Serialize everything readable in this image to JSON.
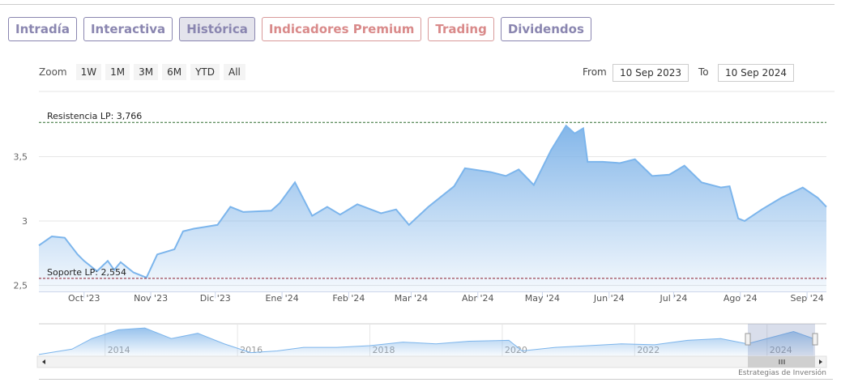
{
  "tabs": [
    {
      "label": "Intradía",
      "style": "normal"
    },
    {
      "label": "Interactiva",
      "style": "normal"
    },
    {
      "label": "Histórica",
      "style": "active"
    },
    {
      "label": "Indicadores Premium",
      "style": "red"
    },
    {
      "label": "Trading",
      "style": "red"
    },
    {
      "label": "Dividendos",
      "style": "normal"
    }
  ],
  "zoom": {
    "label": "Zoom",
    "buttons": [
      "1W",
      "1M",
      "3M",
      "6M",
      "YTD",
      "All"
    ]
  },
  "range": {
    "from_label": "From",
    "from_value": "10 Sep 2023",
    "to_label": "To",
    "to_value": "10 Sep 2024"
  },
  "credit": "Estrategias de Inversión",
  "colors": {
    "line": "#7cb5ec",
    "fill_top": "#7eb3e8",
    "resistance": "#2e6b2e",
    "support": "#8b1a2b",
    "tab": "#8a86b0",
    "tab_red": "#d98a8a"
  },
  "chart_data": {
    "type": "area",
    "xlim": [
      "2023-09-10",
      "2024-09-10"
    ],
    "ylim": [
      2.45,
      3.85
    ],
    "grid": true,
    "y_ticks": [
      {
        "v": 2.5,
        "label": "2,5"
      },
      {
        "v": 3,
        "label": "3"
      },
      {
        "v": 3.5,
        "label": "3,5"
      }
    ],
    "x_ticks": [
      {
        "d": "2023-10-01",
        "label": "Oct '23"
      },
      {
        "d": "2023-11-01",
        "label": "Nov '23"
      },
      {
        "d": "2023-12-01",
        "label": "Dic '23"
      },
      {
        "d": "2024-01-01",
        "label": "Ene '24"
      },
      {
        "d": "2024-02-01",
        "label": "Feb '24"
      },
      {
        "d": "2024-03-01",
        "label": "Mar '24"
      },
      {
        "d": "2024-04-01",
        "label": "Abr '24"
      },
      {
        "d": "2024-05-01",
        "label": "May '24"
      },
      {
        "d": "2024-06-01",
        "label": "Jun '24"
      },
      {
        "d": "2024-07-01",
        "label": "Jul '24"
      },
      {
        "d": "2024-08-01",
        "label": "Ago '24"
      },
      {
        "d": "2024-09-01",
        "label": "Sep '24"
      }
    ],
    "lines": [
      {
        "label": "Resistencia LP: 3,766",
        "value": 3.766,
        "kind": "resistance"
      },
      {
        "label": "Soporte LP: 2,554",
        "value": 2.554,
        "kind": "support"
      }
    ],
    "series": [
      {
        "points": [
          [
            "2023-09-10",
            2.81
          ],
          [
            "2023-09-16",
            2.88
          ],
          [
            "2023-09-22",
            2.87
          ],
          [
            "2023-09-28",
            2.74
          ],
          [
            "2023-10-01",
            2.69
          ],
          [
            "2023-10-07",
            2.61
          ],
          [
            "2023-10-12",
            2.69
          ],
          [
            "2023-10-15",
            2.62
          ],
          [
            "2023-10-18",
            2.68
          ],
          [
            "2023-10-24",
            2.6
          ],
          [
            "2023-10-30",
            2.56
          ],
          [
            "2023-11-04",
            2.74
          ],
          [
            "2023-11-12",
            2.78
          ],
          [
            "2023-11-16",
            2.92
          ],
          [
            "2023-11-21",
            2.94
          ],
          [
            "2023-12-02",
            2.97
          ],
          [
            "2023-12-08",
            3.11
          ],
          [
            "2023-12-14",
            3.07
          ],
          [
            "2023-12-27",
            3.08
          ],
          [
            "2023-12-31",
            3.14
          ],
          [
            "2024-01-07",
            3.3
          ],
          [
            "2024-01-15",
            3.04
          ],
          [
            "2024-01-22",
            3.11
          ],
          [
            "2024-01-28",
            3.05
          ],
          [
            "2024-02-05",
            3.13
          ],
          [
            "2024-02-16",
            3.06
          ],
          [
            "2024-02-23",
            3.09
          ],
          [
            "2024-02-29",
            2.97
          ],
          [
            "2024-03-09",
            3.11
          ],
          [
            "2024-03-21",
            3.27
          ],
          [
            "2024-03-26",
            3.41
          ],
          [
            "2024-04-07",
            3.38
          ],
          [
            "2024-04-14",
            3.35
          ],
          [
            "2024-04-20",
            3.4
          ],
          [
            "2024-04-27",
            3.28
          ],
          [
            "2024-05-05",
            3.55
          ],
          [
            "2024-05-12",
            3.74
          ],
          [
            "2024-05-16",
            3.68
          ],
          [
            "2024-05-20",
            3.72
          ],
          [
            "2024-05-22",
            3.46
          ],
          [
            "2024-05-29",
            3.46
          ],
          [
            "2024-06-06",
            3.45
          ],
          [
            "2024-06-13",
            3.48
          ],
          [
            "2024-06-21",
            3.35
          ],
          [
            "2024-06-29",
            3.36
          ],
          [
            "2024-07-06",
            3.43
          ],
          [
            "2024-07-14",
            3.3
          ],
          [
            "2024-07-23",
            3.26
          ],
          [
            "2024-07-27",
            3.27
          ],
          [
            "2024-07-31",
            3.02
          ],
          [
            "2024-08-03",
            3.0
          ],
          [
            "2024-08-11",
            3.09
          ],
          [
            "2024-08-20",
            3.18
          ],
          [
            "2024-08-30",
            3.26
          ],
          [
            "2024-09-06",
            3.18
          ],
          [
            "2024-09-10",
            3.11
          ]
        ]
      }
    ],
    "navigator": {
      "x_ticks": [
        "2014",
        "2016",
        "2018",
        "2020",
        "2022",
        "2024"
      ],
      "points": [
        [
          2013.0,
          2.3
        ],
        [
          2013.5,
          2.6
        ],
        [
          2013.8,
          3.2
        ],
        [
          2014.2,
          3.7
        ],
        [
          2014.6,
          3.8
        ],
        [
          2015.0,
          3.2
        ],
        [
          2015.4,
          3.5
        ],
        [
          2015.8,
          2.9
        ],
        [
          2016.2,
          2.4
        ],
        [
          2016.6,
          2.5
        ],
        [
          2017.0,
          2.7
        ],
        [
          2017.5,
          2.7
        ],
        [
          2018.0,
          2.8
        ],
        [
          2018.5,
          3.0
        ],
        [
          2019.0,
          2.9
        ],
        [
          2019.5,
          3.05
        ],
        [
          2020.1,
          3.1
        ],
        [
          2020.3,
          2.5
        ],
        [
          2020.8,
          2.7
        ],
        [
          2021.3,
          2.8
        ],
        [
          2021.8,
          2.9
        ],
        [
          2022.3,
          2.85
        ],
        [
          2022.8,
          3.1
        ],
        [
          2023.3,
          3.2
        ],
        [
          2023.7,
          2.9
        ],
        [
          2024.0,
          3.2
        ],
        [
          2024.4,
          3.6
        ],
        [
          2024.7,
          3.2
        ]
      ]
    }
  }
}
